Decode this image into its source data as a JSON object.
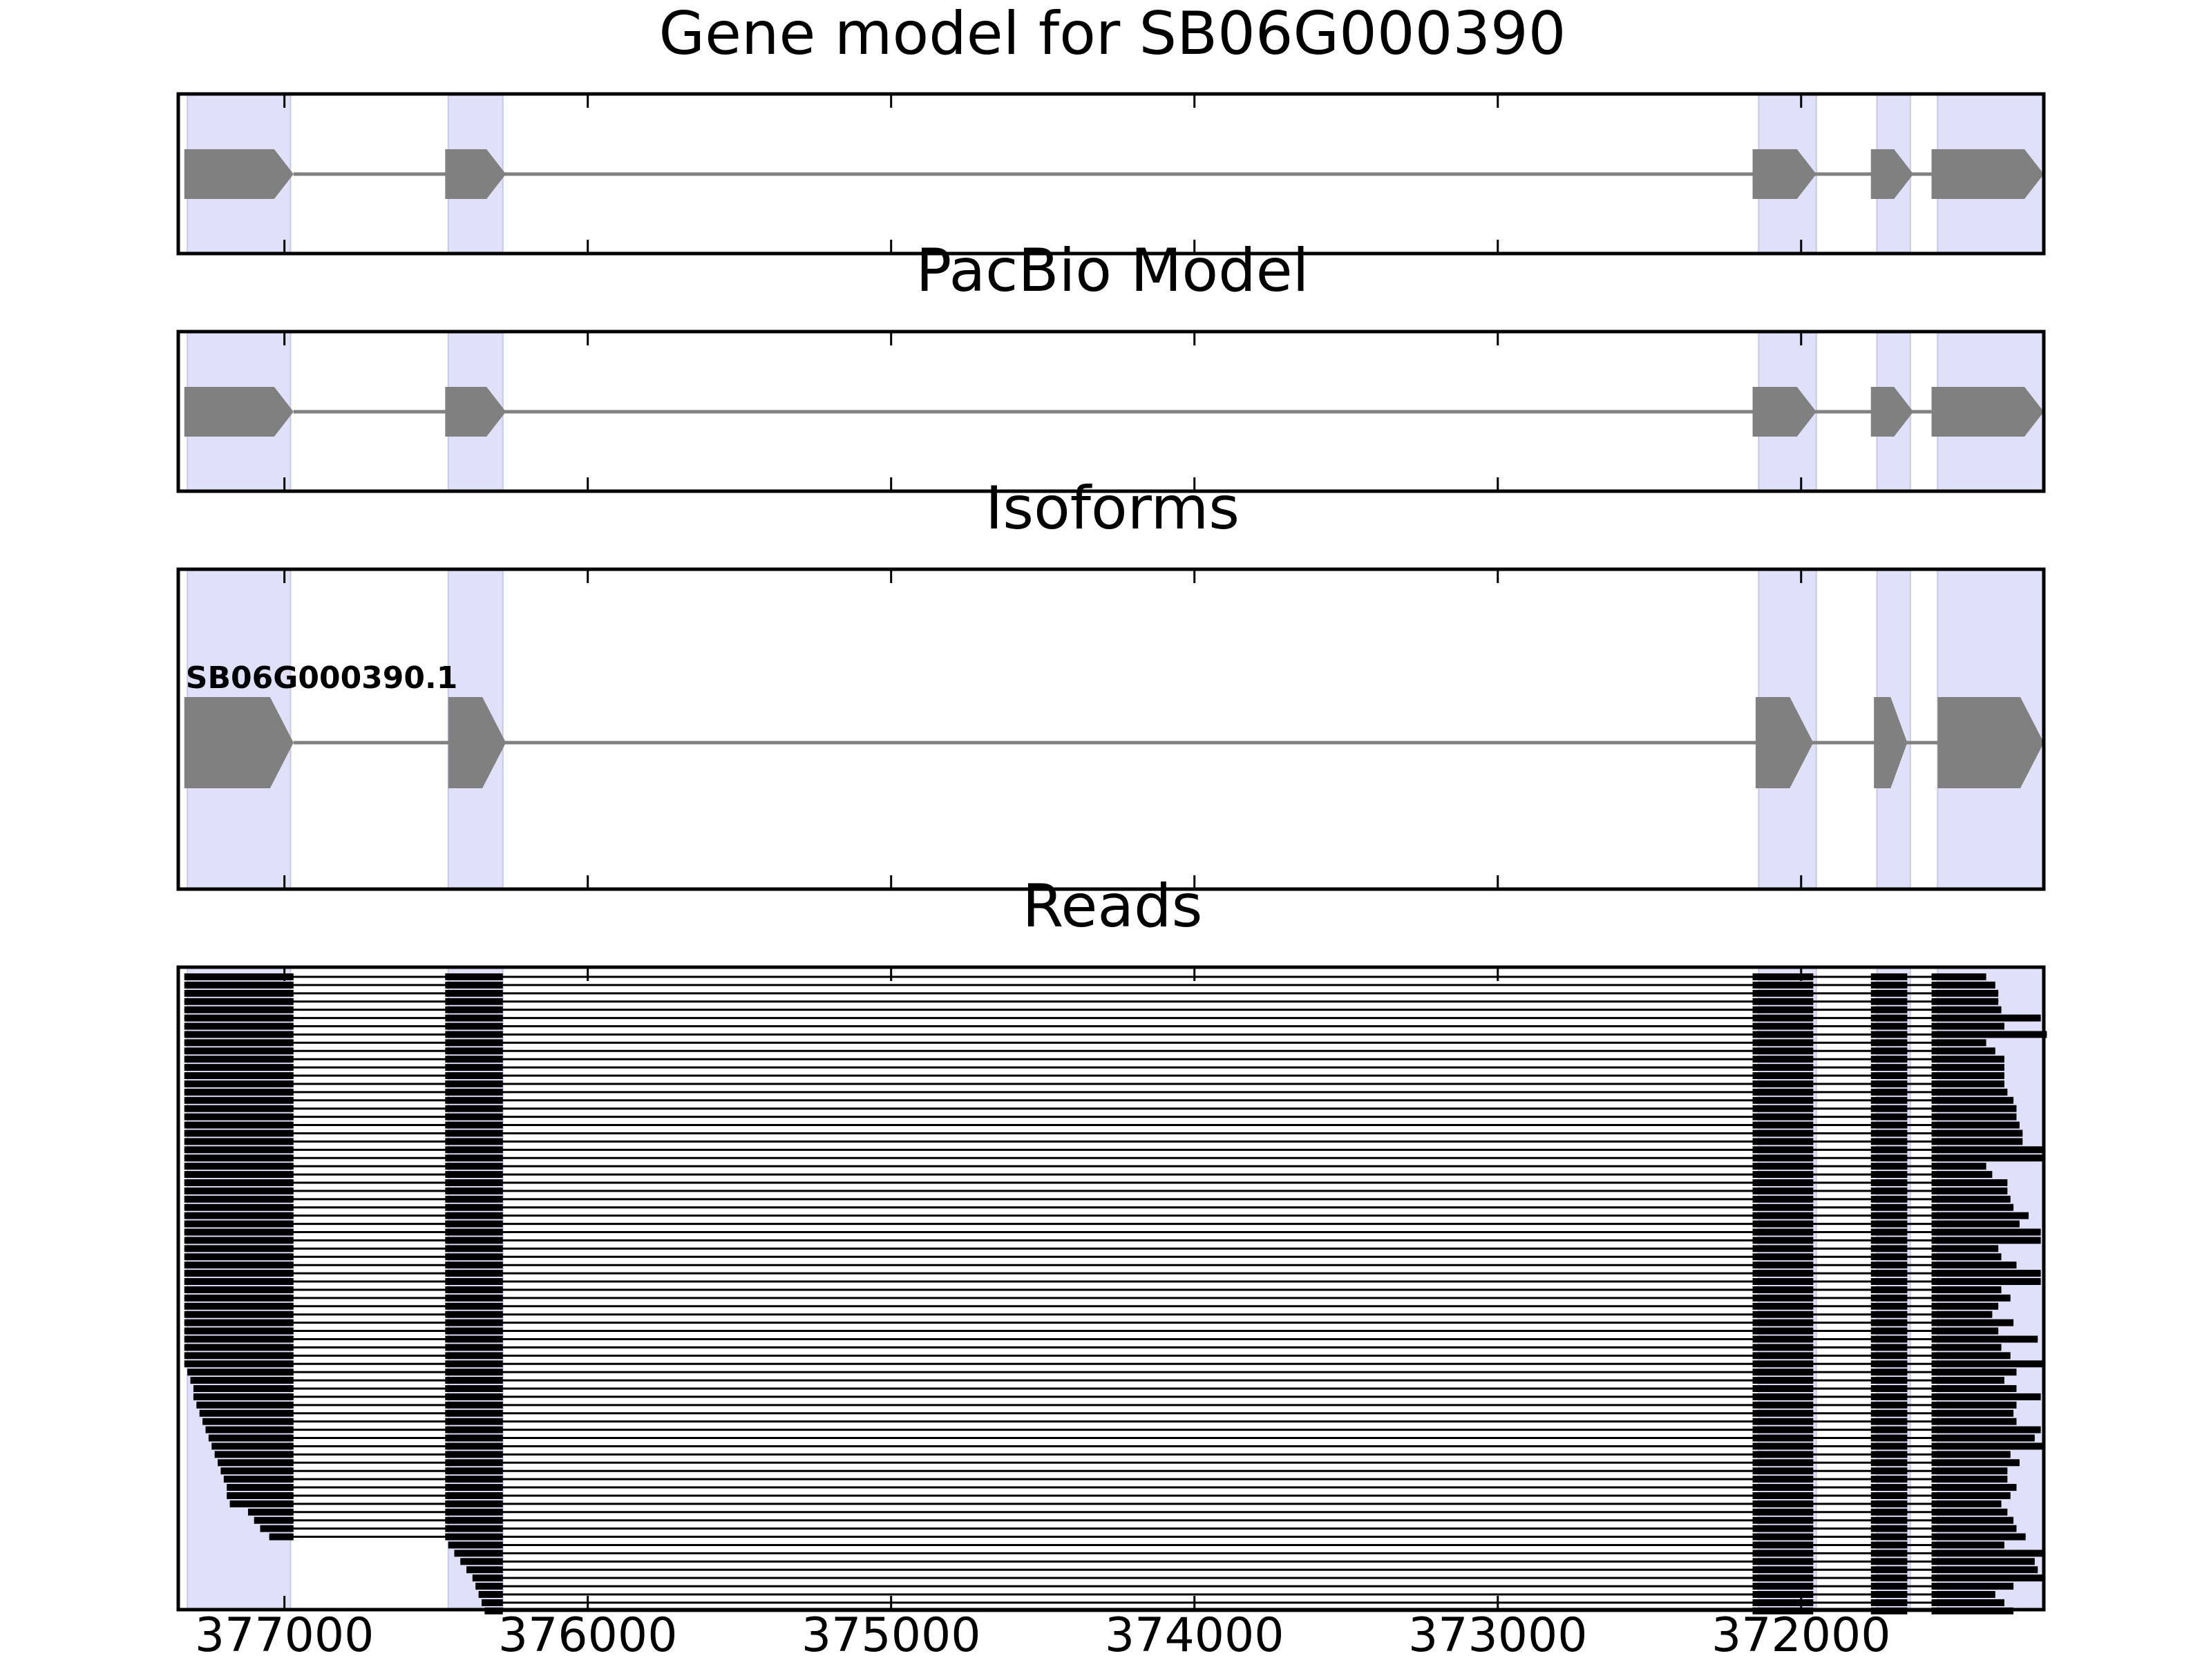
{
  "chart_data": {
    "type": "gene-track",
    "x_axis": {
      "direction": "descending",
      "range_bp": [
        377350,
        371200
      ],
      "ticks": [
        377000,
        376000,
        375000,
        374000,
        373000,
        372000
      ],
      "tick_labels": [
        "377000",
        "376000",
        "375000",
        "374000",
        "373000",
        "372000"
      ]
    },
    "exon_highlight_color": "#e0e0fa",
    "feature_color": "#808080",
    "read_color": "#000000",
    "exons_bp": [
      [
        377320,
        376980
      ],
      [
        376460,
        376280
      ],
      [
        372140,
        371950
      ],
      [
        371750,
        371640
      ],
      [
        371550,
        371200
      ]
    ],
    "panels": [
      {
        "id": "gene-model",
        "title": "Gene model for SB06G000390",
        "label": "",
        "blocks_bp": [
          [
            377330,
            376970
          ],
          [
            376470,
            376270
          ],
          [
            372160,
            371950
          ],
          [
            371770,
            371630
          ],
          [
            371570,
            371200
          ]
        ]
      },
      {
        "id": "pacbio-model",
        "title": "PacBio Model",
        "label": "",
        "blocks_bp": [
          [
            377330,
            376970
          ],
          [
            376470,
            376270
          ],
          [
            372160,
            371950
          ],
          [
            371770,
            371630
          ],
          [
            371570,
            371200
          ]
        ]
      },
      {
        "id": "isoforms",
        "title": "Isoforms",
        "label": "SB06G000390.1",
        "blocks_bp": [
          [
            377330,
            376970
          ],
          [
            376460,
            376270
          ],
          [
            372150,
            371960
          ],
          [
            371760,
            371650
          ],
          [
            371550,
            371200
          ]
        ]
      }
    ],
    "reads_panel": {
      "title": "Reads",
      "num_reads": 78,
      "exon2_bp": [
        376470,
        376280
      ],
      "exon3_bp": [
        372160,
        371960
      ],
      "exon4_bp": [
        371770,
        371650
      ],
      "exon5_start_bp": 371570,
      "read_start_bp": [
        377330,
        377330,
        377330,
        377330,
        377330,
        377330,
        377330,
        377330,
        377330,
        377330,
        377330,
        377330,
        377330,
        377330,
        377330,
        377330,
        377330,
        377330,
        377330,
        377330,
        377330,
        377330,
        377330,
        377330,
        377330,
        377330,
        377330,
        377330,
        377330,
        377330,
        377330,
        377330,
        377330,
        377330,
        377330,
        377330,
        377330,
        377330,
        377330,
        377330,
        377330,
        377330,
        377330,
        377330,
        377330,
        377330,
        377330,
        377330,
        377320,
        377310,
        377300,
        377300,
        377290,
        377280,
        377270,
        377260,
        377250,
        377240,
        377230,
        377220,
        377210,
        377200,
        377190,
        377190,
        377180,
        377120,
        377100,
        377080,
        377050,
        376460,
        376440,
        376420,
        376400,
        376380,
        376370,
        376360,
        376350,
        376340
      ],
      "read_end_bp": [
        371390,
        371360,
        371350,
        371350,
        371340,
        371210,
        371330,
        371190,
        371390,
        371360,
        371330,
        371330,
        371330,
        371330,
        371320,
        371300,
        371290,
        371290,
        371280,
        371270,
        371270,
        371200,
        371200,
        371390,
        371370,
        371320,
        371320,
        371310,
        371300,
        371250,
        371280,
        371210,
        371210,
        371350,
        371340,
        371290,
        371210,
        371210,
        371340,
        371310,
        371350,
        371370,
        371300,
        371350,
        371220,
        371340,
        371310,
        371200,
        371290,
        371330,
        371290,
        371210,
        371290,
        371300,
        371290,
        371210,
        371230,
        371200,
        371310,
        371280,
        371320,
        371320,
        371290,
        371310,
        371340,
        371320,
        371300,
        371290,
        371260,
        371330,
        371200,
        371230,
        371220,
        371200,
        371300,
        371360,
        371330,
        371300
      ]
    }
  }
}
